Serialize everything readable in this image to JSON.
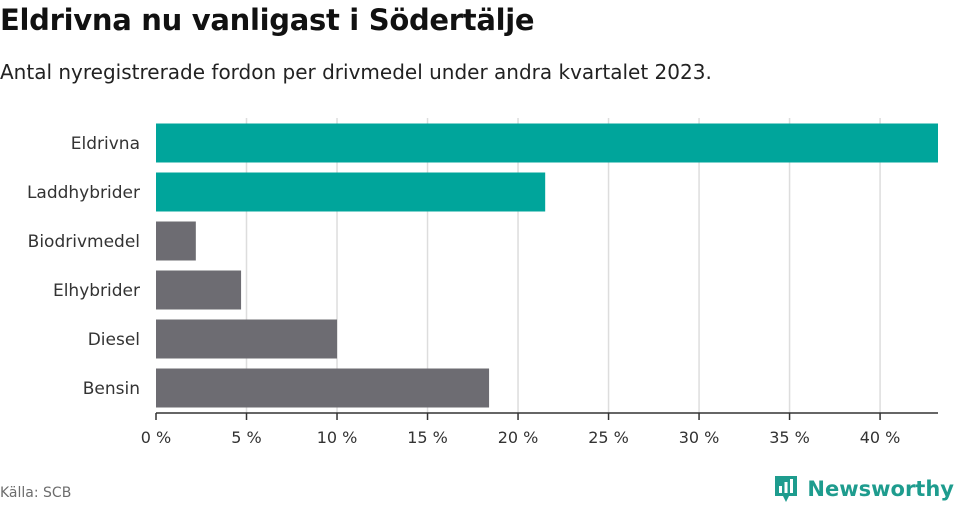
{
  "header": {
    "title": "Eldrivna nu vanligast i Södertälje",
    "subtitle": "Antal nyregistrerade fordon per drivmedel under andra kvartalet 2023."
  },
  "footer": {
    "source": "Källa: SCB",
    "brand": "Newsworthy"
  },
  "colors": {
    "highlight": "#00a59b",
    "default": "#6d6c72",
    "grid": "#dddddd",
    "axis": "#333333",
    "brand": "#1e9c8e"
  },
  "chart_data": {
    "type": "bar",
    "orientation": "horizontal",
    "categories": [
      "Eldrivna",
      "Laddhybrider",
      "Biodrivmedel",
      "Elhybrider",
      "Diesel",
      "Bensin"
    ],
    "values": [
      43.2,
      21.5,
      2.2,
      4.7,
      10.0,
      18.4
    ],
    "highlighted": [
      true,
      true,
      false,
      false,
      false,
      false
    ],
    "xlim": [
      0,
      43.2
    ],
    "xticks": [
      0,
      5,
      10,
      15,
      20,
      25,
      30,
      35,
      40
    ],
    "xtick_labels": [
      "0 %",
      "5 %",
      "10 %",
      "15 %",
      "20 %",
      "25 %",
      "30 %",
      "35 %",
      "40 %"
    ],
    "grid": true,
    "xlabel": "",
    "ylabel": ""
  }
}
